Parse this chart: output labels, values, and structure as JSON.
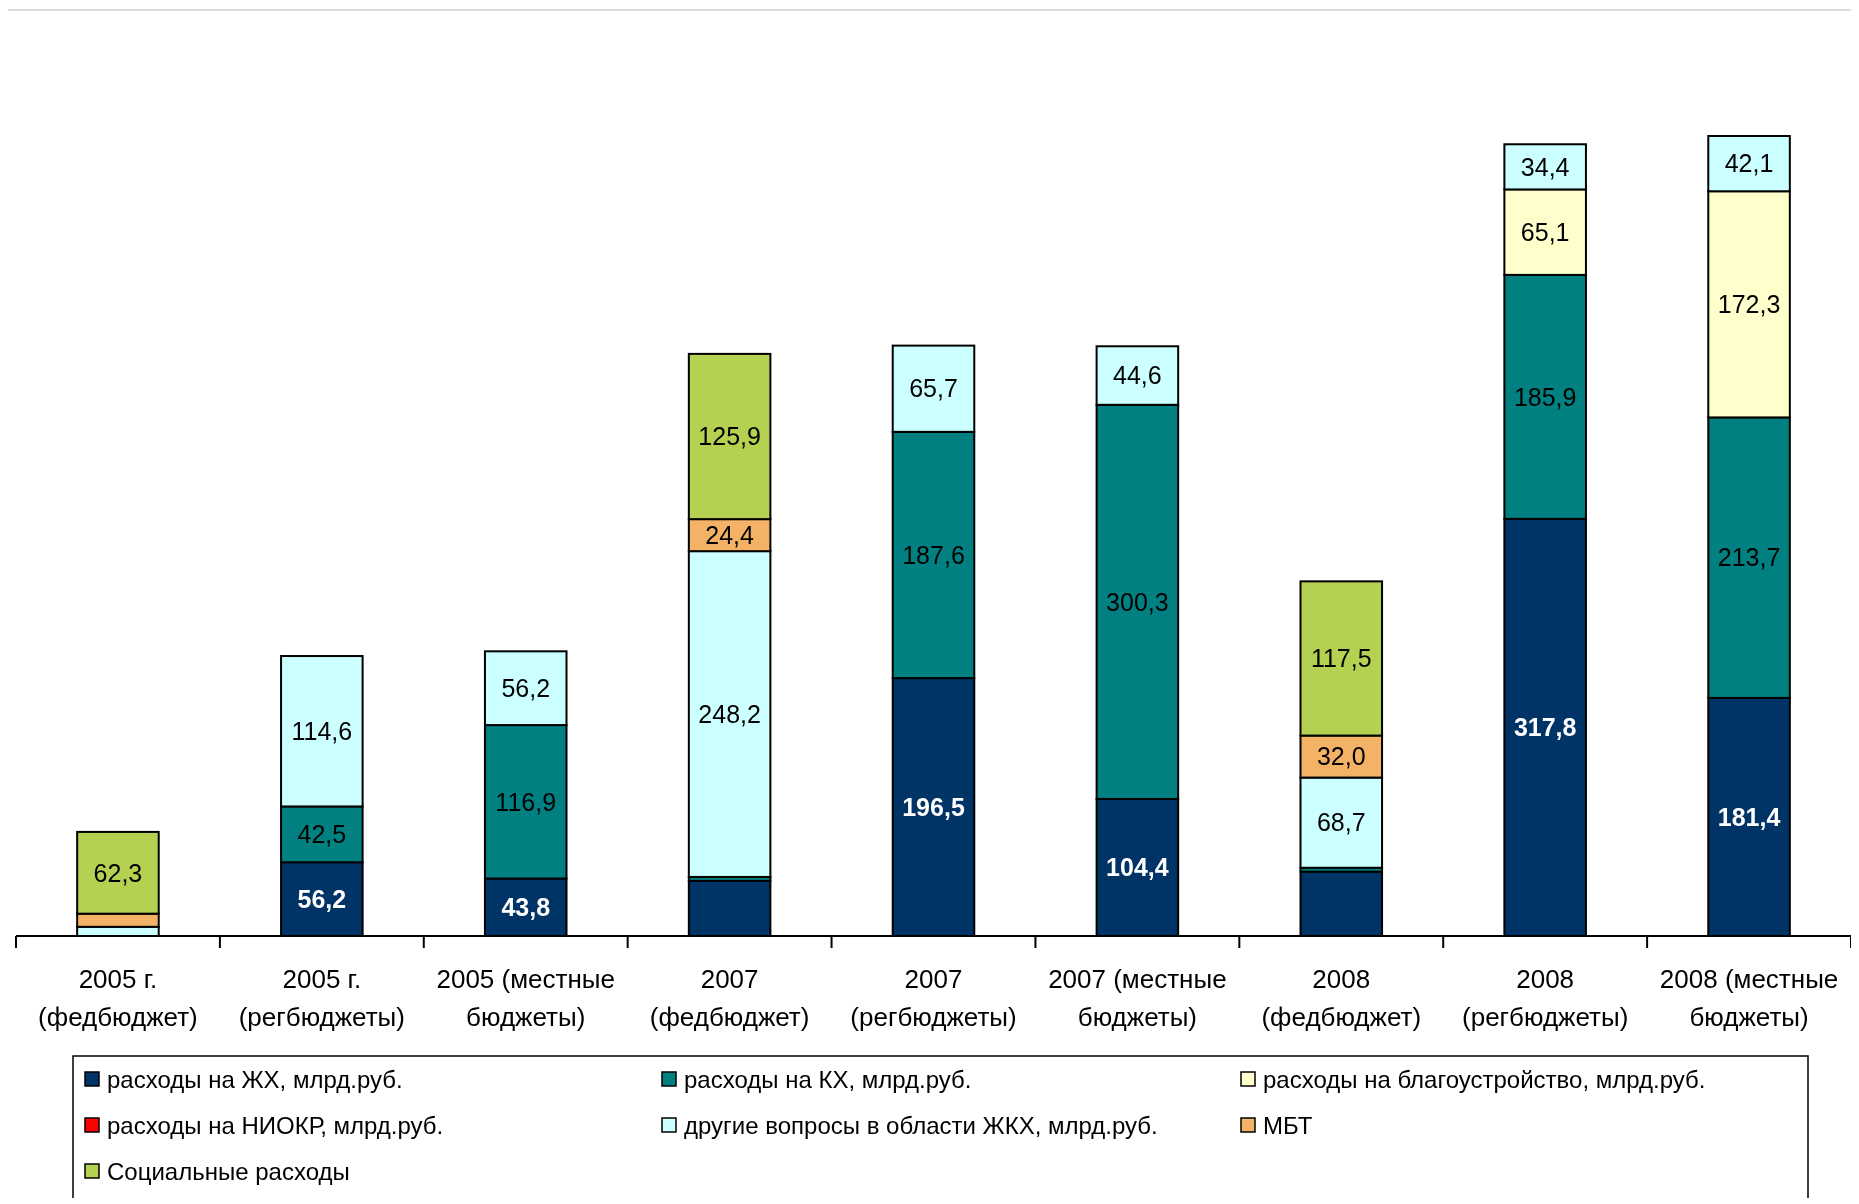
{
  "chart_data": {
    "type": "bar",
    "stacked": true,
    "legend": "bottom",
    "categories": [
      "2005 г. (федбюджет)",
      "2005 г. (регбюджеты)",
      "2005 (местные бюджеты)",
      "2007 (федбюджет)",
      "2007 (регбюджеты)",
      "2007 (местные бюджеты)",
      "2008 (федбюджет)",
      "2008 (регбюджеты)",
      "2008 (местные бюджеты)"
    ],
    "series": [
      {
        "name": "расходы на ЖХ, млрд.руб.",
        "color": "#003366",
        "values": [
          null,
          56.2,
          43.8,
          42,
          196.5,
          104.4,
          49,
          317.8,
          181.4
        ],
        "value_labels": [
          null,
          "56,2",
          "43,8",
          null,
          "196,5",
          "104,4",
          null,
          "317,8",
          "181,4"
        ]
      },
      {
        "name": "расходы на КХ, млрд.руб.",
        "color": "#008080",
        "values": [
          null,
          42.5,
          116.9,
          3,
          187.6,
          300.3,
          3,
          185.9,
          213.7
        ],
        "value_labels": [
          null,
          "42,5",
          "116,9",
          null,
          "187,6",
          "300,3",
          null,
          "185,9",
          "213,7"
        ]
      },
      {
        "name": "расходы на благоустройство, млрд.руб.",
        "color": "#ffffcc",
        "values": [
          null,
          null,
          null,
          null,
          null,
          null,
          null,
          65.1,
          172.3
        ],
        "value_labels": [
          null,
          null,
          null,
          null,
          null,
          null,
          null,
          "65,1",
          "172,3"
        ]
      },
      {
        "name": "расходы на НИОКР, млрд.руб.",
        "color": "#ff0000",
        "values": [
          null,
          null,
          null,
          null,
          null,
          null,
          null,
          null,
          null
        ]
      },
      {
        "name": "другие вопросы в области ЖКХ, млрд.руб.",
        "color": "#ccffff",
        "values": [
          7,
          114.6,
          56.2,
          248.2,
          65.7,
          44.6,
          68.7,
          34.4,
          42.1
        ],
        "value_labels": [
          null,
          "114,6",
          "56,2",
          "248,2",
          "65,7",
          "44,6",
          "68,7",
          "34,4",
          "42,1"
        ]
      },
      {
        "name": "МБТ",
        "color": "#f4b266",
        "values": [
          10,
          null,
          null,
          24.4,
          null,
          null,
          32.0,
          null,
          null
        ],
        "value_labels": [
          null,
          null,
          null,
          "24,4",
          null,
          null,
          "32,0",
          null,
          null
        ]
      },
      {
        "name": "Социальные расходы",
        "color": "#b5d151",
        "values": [
          62.3,
          null,
          null,
          125.9,
          null,
          null,
          117.5,
          null,
          null
        ],
        "value_labels": [
          "62,3",
          null,
          null,
          "125,9",
          null,
          null,
          "117,5",
          null,
          null
        ]
      }
    ]
  }
}
